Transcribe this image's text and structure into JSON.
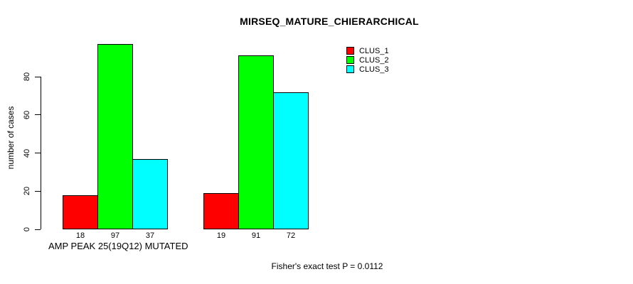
{
  "title": "MIRSEQ_MATURE_CHIERARCHICAL",
  "footer": {
    "stat_text": "Fisher's exact test P = 0.0112"
  },
  "chart_data": {
    "type": "bar",
    "title": "MIRSEQ_MATURE_CHIERARCHICAL",
    "ylabel": "number of cases",
    "xlabel": "AMP PEAK 25(19Q12) MUTATED",
    "ylim": [
      0,
      80
    ],
    "yticks": [
      0,
      20,
      40,
      60,
      80
    ],
    "grid": false,
    "bar_value_labels": true,
    "legend_position": "top-right",
    "categories": [
      "AMP PEAK 25(19Q12) MUTATED",
      ""
    ],
    "series": [
      {
        "name": "CLUS_1",
        "color": "#ff0000",
        "values": [
          18,
          19
        ]
      },
      {
        "name": "CLUS_2",
        "color": "#00ff00",
        "values": [
          97,
          91
        ]
      },
      {
        "name": "CLUS_3",
        "color": "#00ffff",
        "values": [
          37,
          72
        ]
      }
    ]
  }
}
